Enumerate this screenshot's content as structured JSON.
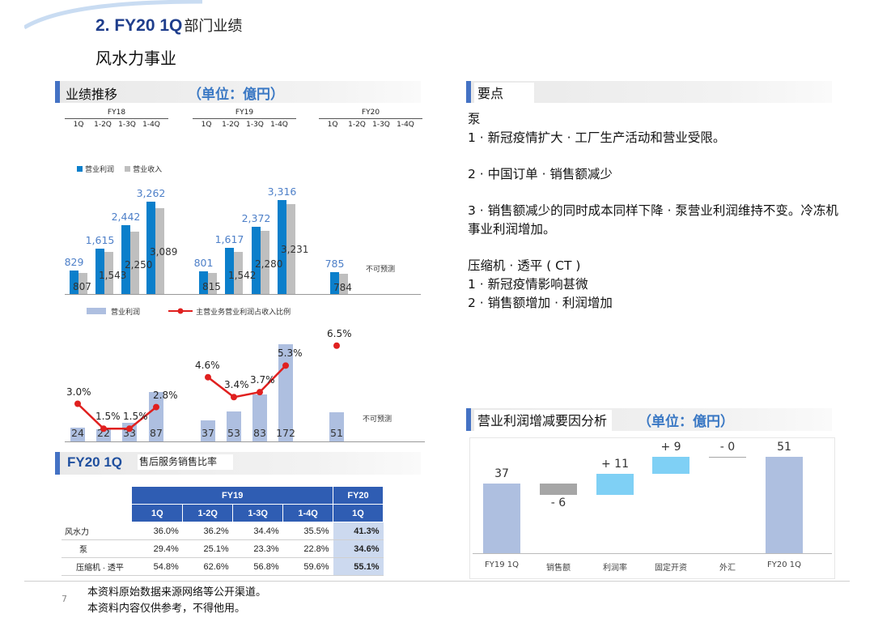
{
  "header": {
    "title": "2. FY20 1Q",
    "title_cn": "部门业绩",
    "subtitle": "风水力事业"
  },
  "left_section": {
    "label": "业绩推移",
    "unit": "（单位：億円）"
  },
  "year_groups": [
    {
      "year": "FY18",
      "quarters": [
        "1Q",
        "1-2Q",
        "1-3Q",
        "1-4Q"
      ]
    },
    {
      "year": "FY19",
      "quarters": [
        "1Q",
        "1-2Q",
        "1-3Q",
        "1-4Q"
      ]
    },
    {
      "year": "FY20",
      "quarters": [
        "1Q",
        "1-2Q",
        "1-3Q",
        "1-4Q"
      ]
    }
  ],
  "chart_data": [
    {
      "type": "bar",
      "legend": [
        "营业利润",
        "营业收入"
      ],
      "series": [
        {
          "name": "营业利润",
          "color": "#0b7fcb",
          "values": [
            829,
            1615,
            2442,
            3262,
            801,
            1617,
            2372,
            3316,
            785
          ]
        },
        {
          "name": "营业收入",
          "color": "#bfbfbf",
          "values": [
            807,
            1543,
            2250,
            3089,
            815,
            1542,
            2280,
            3231,
            784
          ]
        }
      ],
      "note": "不可预测"
    },
    {
      "type": "bar",
      "legend": [
        "营业利润",
        "主营业务营业利润占收入比例"
      ],
      "values": [
        24,
        22,
        33,
        87,
        37,
        53,
        83,
        172,
        51
      ],
      "ratio": [
        "3.0%",
        "1.5%",
        "1.5%",
        "2.8%",
        "4.6%",
        "3.4%",
        "3.7%",
        "5.3%",
        "6.5%"
      ],
      "note": "不可预测"
    },
    {
      "type": "bar",
      "title": "营业利润增减要因分析",
      "unit": "（单位：億円）",
      "categories": [
        "FY19 1Q",
        "销售额",
        "利润率",
        "固定开资",
        "外汇",
        "FY20 1Q"
      ],
      "values": [
        37,
        -6,
        11,
        9,
        0,
        51
      ],
      "labels": [
        "37",
        "- 6",
        "+ 11",
        "+ 9",
        "- 0",
        "51"
      ]
    }
  ],
  "service_section": {
    "label": "FY20 1Q",
    "label_cn": "售后服务销售比率"
  },
  "service_table": {
    "group_headers": [
      "FY19",
      "FY20"
    ],
    "columns": [
      "1Q",
      "1-2Q",
      "1-3Q",
      "1-4Q",
      "1Q"
    ],
    "rows": [
      {
        "label": "风水力",
        "values": [
          "36.0%",
          "36.2%",
          "34.4%",
          "35.5%",
          "41.3%"
        ]
      },
      {
        "label": "泵",
        "values": [
          "29.4%",
          "25.1%",
          "23.3%",
          "22.8%",
          "34.6%"
        ]
      },
      {
        "label": "压缩机 · 透平",
        "values": [
          "54.8%",
          "62.6%",
          "56.8%",
          "59.6%",
          "55.1%"
        ]
      }
    ]
  },
  "points": {
    "label": "要点",
    "items": [
      "泵",
      "1 · 新冠疫情扩大 · 工厂生产活动和营业受限。",
      "",
      "2 · 中国订单 · 销售额减少",
      "",
      "3 · 销售额减少的同时成本同样下降 · 泵营业利润维持不变。冷冻机事业利润增加。",
      "",
      "压缩机 · 透平 ( CT )",
      "1 · 新冠疫情影响甚微",
      "2 · 销售额增加 · 利润增加"
    ]
  },
  "footer": {
    "page": "7",
    "lines": [
      "本资料原始数据来源网络等公开渠道。",
      "本资料内容仅供参考，不得他用。"
    ]
  }
}
